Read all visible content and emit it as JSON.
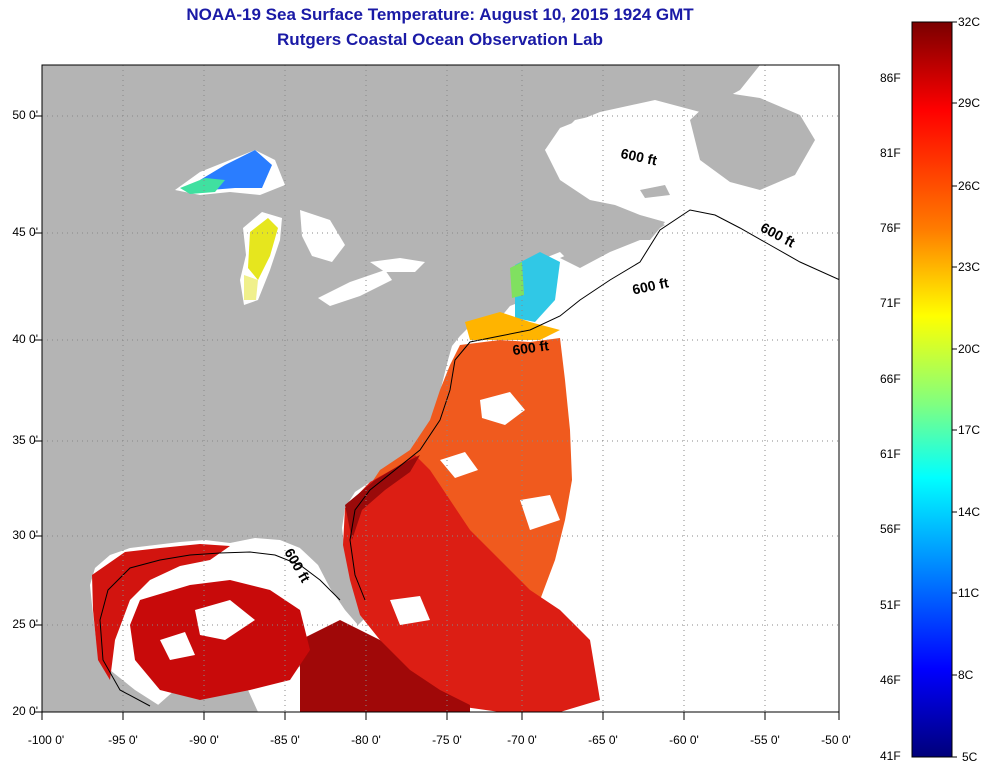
{
  "header": {
    "title": "NOAA-19 Sea Surface Temperature:  August 10, 2015 1924 GMT",
    "subtitle": "Rutgers Coastal Ocean Observation Lab"
  },
  "map": {
    "lon_range": [
      -100,
      -50
    ],
    "lat_range": [
      20,
      52
    ],
    "x_ticks": [
      "-100 0'",
      "-95 0'",
      "-90 0'",
      "-85 0'",
      "-80 0'",
      "-75 0'",
      "-70 0'",
      "-65 0'",
      "-60 0'",
      "-55 0'",
      "-50 0'"
    ],
    "y_ticks": [
      "50 0'",
      "45 0'",
      "40 0'",
      "35 0'",
      "30 0'",
      "25 0'",
      "20 0'"
    ],
    "contour_label": "600 ft",
    "land_color": "#b4b4b4",
    "cloud_color": "#ffffff"
  },
  "colorbar": {
    "celsius_labels": [
      "32C",
      "29C",
      "26C",
      "23C",
      "20C",
      "17C",
      "14C",
      "11C",
      "8C",
      "5C"
    ],
    "fahrenheit_labels": [
      "86F",
      "81F",
      "76F",
      "71F",
      "66F",
      "61F",
      "56F",
      "51F",
      "46F",
      "41F"
    ],
    "colors": [
      "#800000",
      "#ff0000",
      "#ff8000",
      "#ffff00",
      "#80ff80",
      "#00ffff",
      "#0080ff",
      "#0000ff",
      "#000080"
    ]
  }
}
